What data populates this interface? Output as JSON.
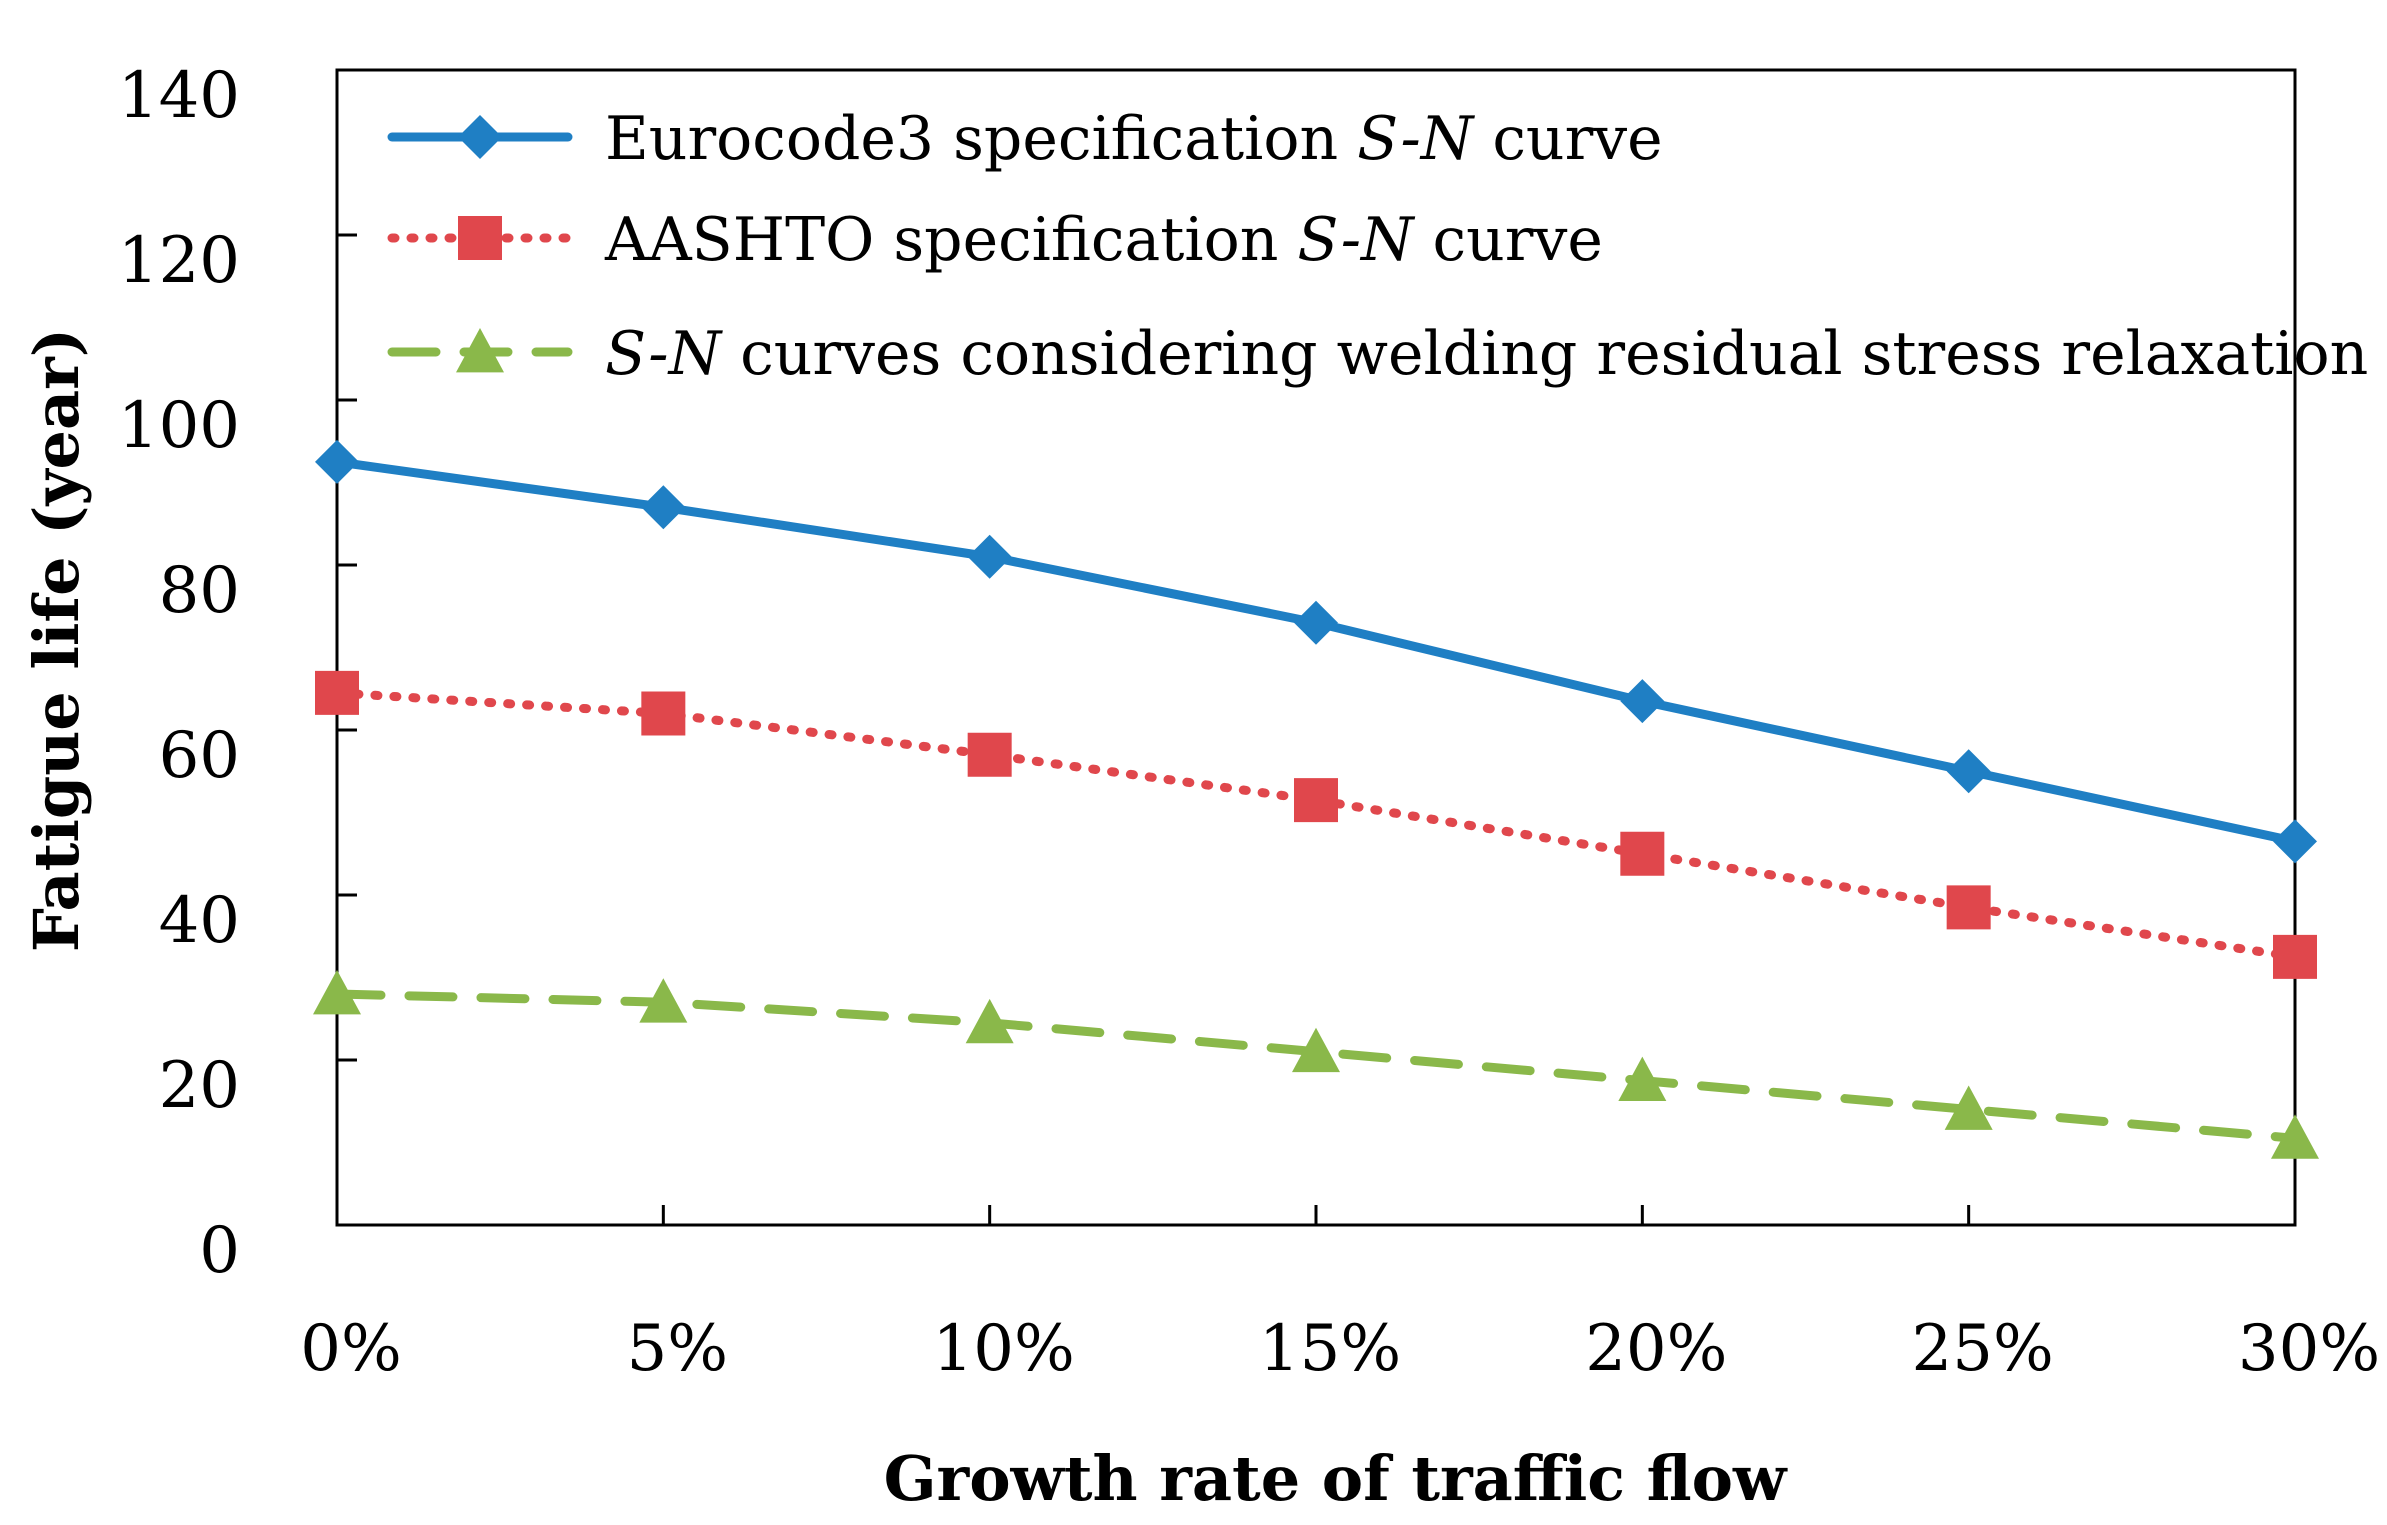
{
  "chart_data": {
    "type": "line",
    "title": "",
    "xlabel": "Growth rate of traffic flow",
    "ylabel": "Fatigue life (year)",
    "categories": [
      "0%",
      "5%",
      "10%",
      "15%",
      "20%",
      "25%",
      "30%"
    ],
    "ylim": [
      0,
      140
    ],
    "yticks": [
      "0",
      "20",
      "40",
      "60",
      "80",
      "100",
      "120",
      "140"
    ],
    "grid": false,
    "legend_position": "top-left",
    "series": [
      {
        "name": "Eurocode3 specification S-N curve",
        "legend_parts": [
          {
            "text": "Eurocode3 specification ",
            "italic": false
          },
          {
            "text": "S-N",
            "italic": true
          },
          {
            "text": " curve",
            "italic": false
          }
        ],
        "values": [
          92.5,
          87,
          81,
          73,
          63.5,
          55,
          46.5
        ],
        "color": "#1f7fc4",
        "marker": "diamond",
        "dash": "solid"
      },
      {
        "name": "AASHTO specification S-N curve",
        "legend_parts": [
          {
            "text": "AASHTO specification ",
            "italic": false
          },
          {
            "text": "S-N",
            "italic": true
          },
          {
            "text": " curve",
            "italic": false
          }
        ],
        "values": [
          64.5,
          62,
          57,
          51.5,
          45,
          38.5,
          32.5
        ],
        "color": "#e0474c",
        "marker": "square",
        "dash": "dotted"
      },
      {
        "name": "S-N curves considering welding residual stress relaxation",
        "legend_parts": [
          {
            "text": "S-N",
            "italic": true
          },
          {
            "text": " curves considering welding residual stress relaxation",
            "italic": false
          }
        ],
        "values": [
          28,
          27,
          24.5,
          21,
          17.5,
          14,
          10.5
        ],
        "color": "#8ab84a",
        "marker": "triangle",
        "dash": "dashed"
      }
    ]
  }
}
